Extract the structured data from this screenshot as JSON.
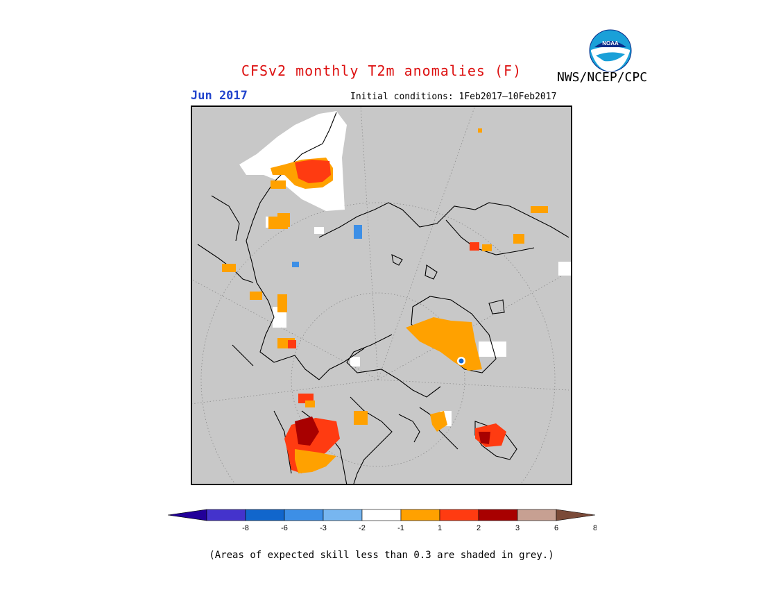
{
  "header": {
    "title": "CFSv2 monthly T2m anomalies (F)",
    "agency": "NWS/NCEP/CPC",
    "month": "Jun 2017",
    "initial_conditions": "Initial conditions: 1Feb2017–10Feb2017",
    "logo_text": "NOAA"
  },
  "colors": {
    "title": "#dd1111",
    "month": "#2244cc",
    "map_background": "#c8c8c8",
    "coast": "#000000",
    "bins": [
      "#220099",
      "#4433cc",
      "#1166cc",
      "#3d8fe6",
      "#77b6f0",
      "#ffffff",
      "#ffa100",
      "#ff3b11",
      "#a80000",
      "#c7a092",
      "#7a4a38"
    ]
  },
  "legend": {
    "ticks": [
      "-8",
      "-6",
      "-3",
      "-2",
      "-1",
      "1",
      "2",
      "3",
      "6",
      "8"
    ]
  },
  "footnote": "(Areas of expected skill less than 0.3 are shaded in grey.)"
}
